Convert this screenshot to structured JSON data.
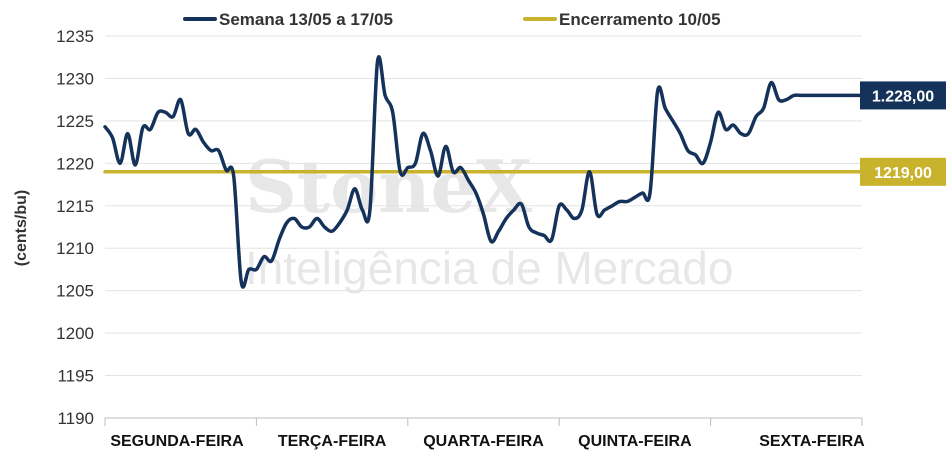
{
  "watermark": {
    "brand": "StoneX",
    "tagline": "Inteligência de Mercado"
  },
  "colors": {
    "week_series": "#14325a",
    "close_series": "#c9b22c",
    "grid": "#e3e3e3",
    "axis": "#bdbdbd"
  },
  "chart_data": {
    "type": "line",
    "title": "",
    "xlabel": "",
    "ylabel": "(cents/bu)",
    "ylim": [
      1190,
      1235
    ],
    "yticks": [
      1190,
      1195,
      1200,
      1205,
      1210,
      1215,
      1220,
      1225,
      1230,
      1235
    ],
    "grid": "horizontal",
    "legend_position": "top",
    "categories": [
      "SEGUNDA-FEIRA",
      "TERÇA-FEIRA",
      "QUARTA-FEIRA",
      "QUINTA-FEIRA",
      "SEXTA-FEIRA"
    ],
    "x_range": [
      0,
      100
    ],
    "series": [
      {
        "name": "Semana 13/05 a 17/05",
        "color": "#14325a",
        "end_label": "1.228,00",
        "x": [
          0,
          1,
          2,
          3,
          4,
          5,
          6,
          7,
          8,
          9,
          10,
          11,
          12,
          13,
          14,
          15,
          16,
          17,
          18,
          19,
          20,
          21,
          22,
          23,
          24,
          25,
          26,
          27,
          28,
          29,
          30,
          31,
          32,
          33,
          34,
          35,
          36,
          37,
          38,
          39,
          40,
          41,
          42,
          43,
          44,
          45,
          46,
          47,
          48,
          49,
          50,
          51,
          52,
          53,
          54,
          55,
          56,
          57,
          58,
          59,
          60,
          61,
          62,
          63,
          64,
          65,
          66,
          67,
          68,
          69,
          70,
          71,
          72,
          73,
          74,
          75,
          76,
          77,
          78,
          79,
          80,
          81,
          82,
          83,
          84,
          85,
          86,
          87,
          88,
          89,
          90,
          91,
          92,
          93,
          94,
          95,
          96,
          97,
          98,
          99,
          100
        ],
        "values": [
          1224.3,
          1223,
          1220,
          1223.5,
          1219.8,
          1224.2,
          1224,
          1226,
          1226,
          1225.5,
          1227.5,
          1223.5,
          1224,
          1222.5,
          1221.5,
          1221.5,
          1219.2,
          1218.5,
          1206,
          1207.5,
          1207.5,
          1209,
          1208.5,
          1211,
          1213,
          1213.5,
          1212.5,
          1212.5,
          1213.5,
          1212.5,
          1212,
          1213,
          1214.5,
          1217,
          1214.5,
          1214.5,
          1232,
          1228,
          1226,
          1219,
          1219.5,
          1220,
          1223.5,
          1221.5,
          1218.5,
          1222,
          1219,
          1219.5,
          1218,
          1216.5,
          1214,
          1210.8,
          1212,
          1213.5,
          1214.5,
          1215.2,
          1212.5,
          1211.8,
          1211.5,
          1211,
          1215,
          1214.5,
          1213.5,
          1214.5,
          1219,
          1214,
          1214.5,
          1215,
          1215.5,
          1215.5,
          1216,
          1216.5,
          1216.5,
          1228.5,
          1226.5,
          1225,
          1223.5,
          1221.5,
          1221,
          1220,
          1222.5,
          1226,
          1224,
          1224.5,
          1223.5,
          1223.5,
          1225.5,
          1226.5,
          1229.5,
          1227.5,
          1227.5,
          1228,
          1228,
          1228,
          1228,
          1228,
          1228,
          1228,
          1228,
          1228,
          1228
        ]
      },
      {
        "name": "Encerramento 10/05",
        "color": "#c9b22c",
        "end_label": "1219,00",
        "x": [
          0,
          100
        ],
        "values": [
          1219,
          1219
        ]
      }
    ]
  }
}
